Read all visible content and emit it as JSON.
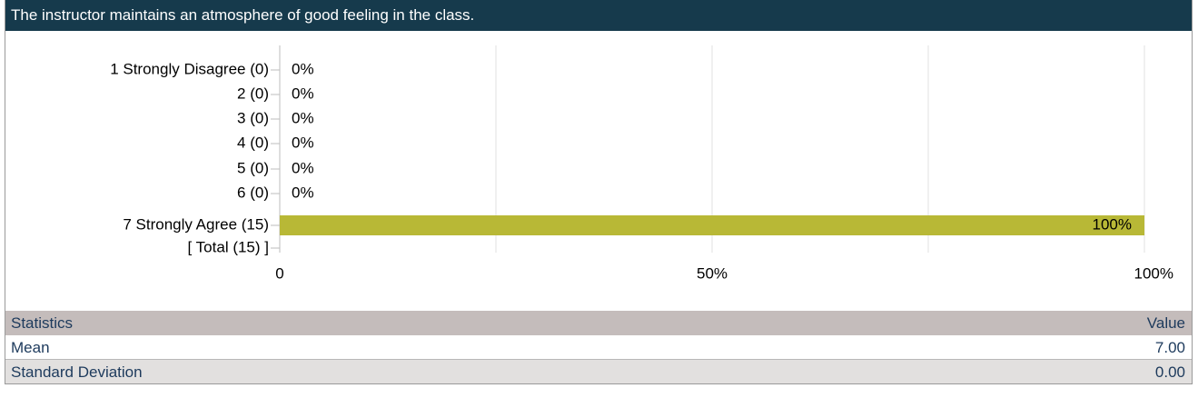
{
  "header": {
    "title": "The instructor maintains an atmosphere of good feeling in the class."
  },
  "chart_data": {
    "type": "hbar",
    "categories": [
      "1 Strongly Disagree (0)",
      "2 (0)",
      "3 (0)",
      "4 (0)",
      "5 (0)",
      "6 (0)",
      "7 Strongly Agree (15)",
      "[ Total (15) ]"
    ],
    "values": [
      0,
      0,
      0,
      0,
      0,
      0,
      100,
      null
    ],
    "value_labels": [
      "0%",
      "0%",
      "0%",
      "0%",
      "0%",
      "0%",
      "100%",
      null
    ],
    "color": "#b8b836",
    "xlim": [
      0,
      100
    ],
    "xticks": [
      0,
      {
        "value": 50,
        "label": "50%"
      },
      {
        "value": 100,
        "label": "100%"
      }
    ],
    "xminor": [
      25,
      75
    ],
    "grid": true
  },
  "table": {
    "header": [
      "Statistics",
      "Value"
    ],
    "rows": [
      [
        "Mean",
        "7.00"
      ],
      [
        "Standard Deviation",
        "0.00"
      ]
    ]
  }
}
